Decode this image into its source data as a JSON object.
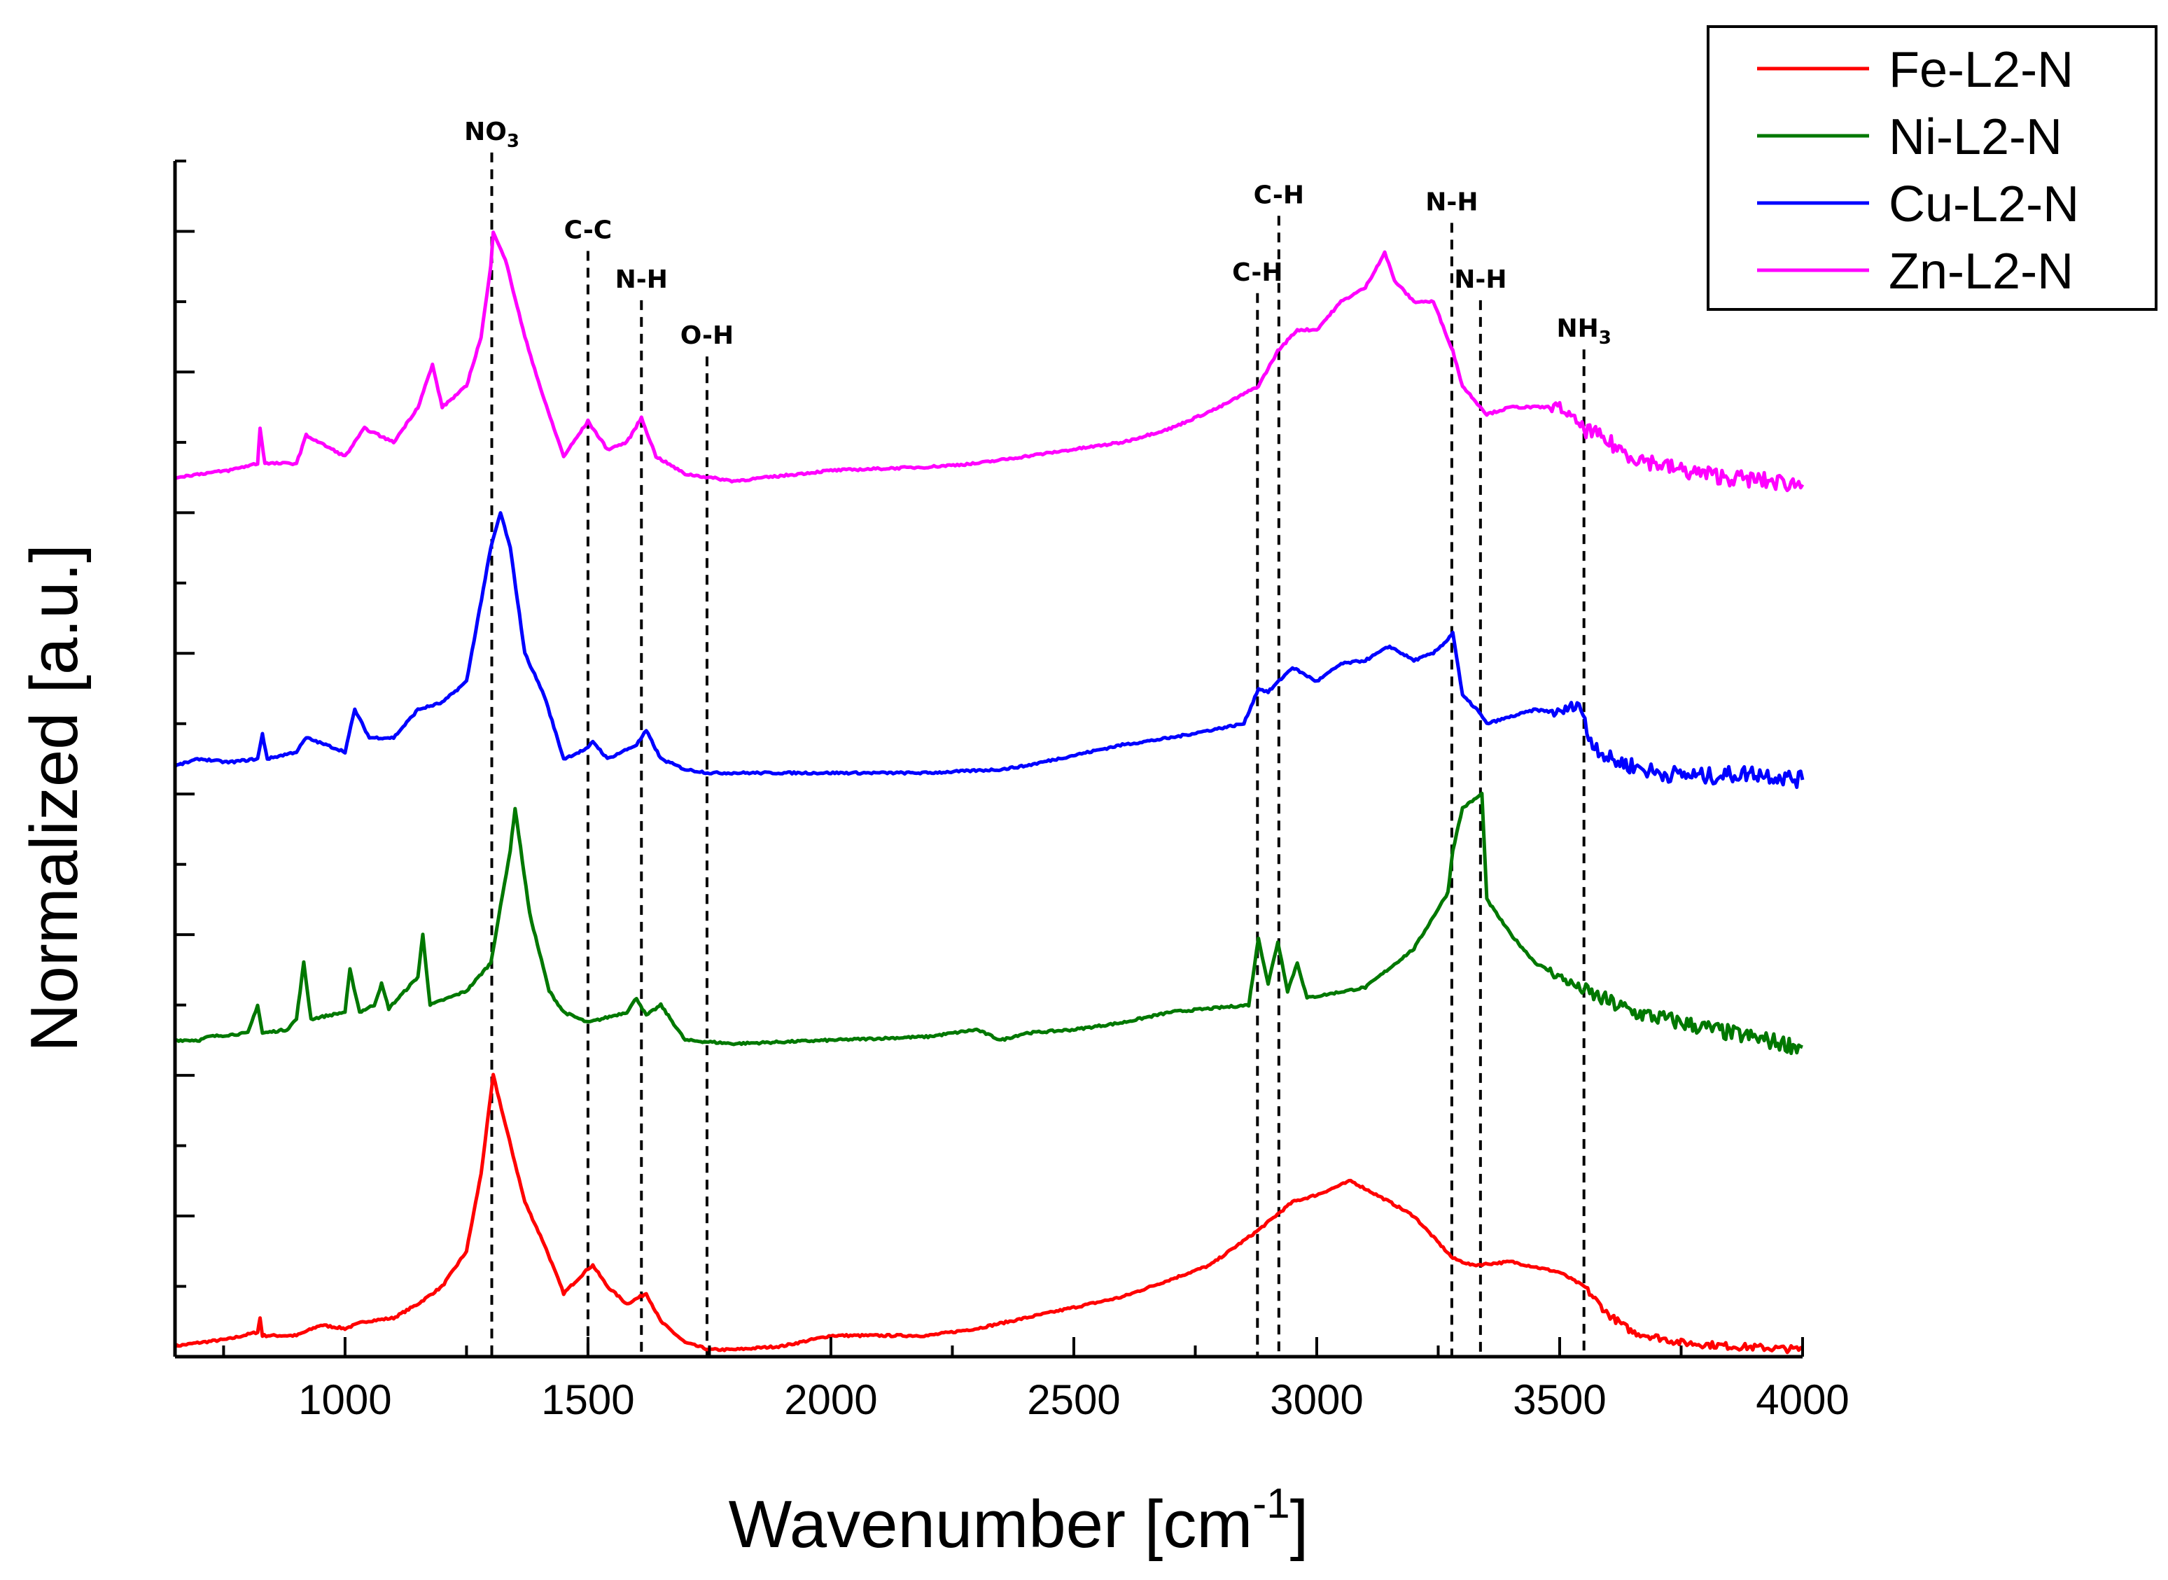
{
  "chart_data": {
    "type": "line",
    "title": "",
    "xlabel": "Wavenumber [cm",
    "xlabel_sup": "-1",
    "xlabel_end": "]",
    "ylabel": "Normalized [a.u.]",
    "xlim": [
      650,
      4000
    ],
    "ylim": [
      0,
      17
    ],
    "x_ticks": [
      "1000",
      "1500",
      "2000",
      "2500",
      "3000",
      "3500",
      "4000"
    ],
    "x_tick_values": [
      1000,
      1500,
      2000,
      2500,
      3000,
      3500,
      4000
    ],
    "y_tick_labels_shown": false,
    "legend_position": "top-right",
    "series": [
      {
        "name": "Fe-L2-N",
        "color": "#ff0000",
        "points": [
          [
            650,
            0.15
          ],
          [
            700,
            0.2
          ],
          [
            760,
            0.25
          ],
          [
            820,
            0.35
          ],
          [
            825,
            0.55
          ],
          [
            830,
            0.3
          ],
          [
            900,
            0.3
          ],
          [
            950,
            0.45
          ],
          [
            1000,
            0.4
          ],
          [
            1040,
            0.5
          ],
          [
            1100,
            0.55
          ],
          [
            1150,
            0.75
          ],
          [
            1200,
            1.0
          ],
          [
            1250,
            1.5
          ],
          [
            1280,
            2.6
          ],
          [
            1305,
            4.0
          ],
          [
            1330,
            3.3
          ],
          [
            1370,
            2.2
          ],
          [
            1410,
            1.6
          ],
          [
            1450,
            0.9
          ],
          [
            1500,
            1.25
          ],
          [
            1510,
            1.3
          ],
          [
            1540,
            1.0
          ],
          [
            1580,
            0.75
          ],
          [
            1620,
            0.9
          ],
          [
            1650,
            0.5
          ],
          [
            1700,
            0.2
          ],
          [
            1750,
            0.1
          ],
          [
            1800,
            0.1
          ],
          [
            1900,
            0.15
          ],
          [
            2000,
            0.3
          ],
          [
            2100,
            0.3
          ],
          [
            2200,
            0.3
          ],
          [
            2300,
            0.4
          ],
          [
            2400,
            0.55
          ],
          [
            2500,
            0.7
          ],
          [
            2600,
            0.85
          ],
          [
            2700,
            1.1
          ],
          [
            2780,
            1.3
          ],
          [
            2880,
            1.8
          ],
          [
            2950,
            2.2
          ],
          [
            3000,
            2.3
          ],
          [
            3070,
            2.5
          ],
          [
            3150,
            2.2
          ],
          [
            3200,
            2.0
          ],
          [
            3280,
            1.4
          ],
          [
            3320,
            1.3
          ],
          [
            3400,
            1.35
          ],
          [
            3500,
            1.2
          ],
          [
            3550,
            1.0
          ],
          [
            3600,
            0.6
          ],
          [
            3650,
            0.35
          ],
          [
            3750,
            0.2
          ],
          [
            3850,
            0.15
          ],
          [
            4000,
            0.1
          ]
        ]
      },
      {
        "name": "Ni-L2-N",
        "color": "#007800",
        "points": [
          [
            650,
            4.5
          ],
          [
            700,
            4.5
          ],
          [
            720,
            4.55
          ],
          [
            800,
            4.6
          ],
          [
            820,
            5.0
          ],
          [
            830,
            4.6
          ],
          [
            880,
            4.65
          ],
          [
            900,
            4.8
          ],
          [
            915,
            5.6
          ],
          [
            930,
            4.8
          ],
          [
            1000,
            4.9
          ],
          [
            1010,
            5.5
          ],
          [
            1030,
            4.9
          ],
          [
            1060,
            5.0
          ],
          [
            1075,
            5.3
          ],
          [
            1090,
            4.95
          ],
          [
            1150,
            5.4
          ],
          [
            1160,
            6.0
          ],
          [
            1175,
            5.0
          ],
          [
            1250,
            5.2
          ],
          [
            1300,
            5.6
          ],
          [
            1340,
            7.2
          ],
          [
            1350,
            7.8
          ],
          [
            1380,
            6.3
          ],
          [
            1420,
            5.2
          ],
          [
            1450,
            4.9
          ],
          [
            1500,
            4.75
          ],
          [
            1580,
            4.9
          ],
          [
            1600,
            5.1
          ],
          [
            1620,
            4.85
          ],
          [
            1650,
            5.0
          ],
          [
            1700,
            4.5
          ],
          [
            1800,
            4.45
          ],
          [
            2000,
            4.5
          ],
          [
            2200,
            4.55
          ],
          [
            2300,
            4.65
          ],
          [
            2350,
            4.5
          ],
          [
            2400,
            4.6
          ],
          [
            2500,
            4.65
          ],
          [
            2600,
            4.75
          ],
          [
            2700,
            4.9
          ],
          [
            2860,
            5.0
          ],
          [
            2880,
            5.95
          ],
          [
            2900,
            5.3
          ],
          [
            2920,
            5.9
          ],
          [
            2940,
            5.2
          ],
          [
            2960,
            5.6
          ],
          [
            2980,
            5.1
          ],
          [
            3100,
            5.25
          ],
          [
            3200,
            5.8
          ],
          [
            3270,
            6.6
          ],
          [
            3280,
            7.2
          ],
          [
            3300,
            7.8
          ],
          [
            3340,
            8.0
          ],
          [
            3350,
            6.5
          ],
          [
            3400,
            6.0
          ],
          [
            3450,
            5.6
          ],
          [
            3500,
            5.4
          ],
          [
            3550,
            5.2
          ],
          [
            3650,
            4.9
          ],
          [
            3750,
            4.75
          ],
          [
            3850,
            4.6
          ],
          [
            4000,
            4.4
          ]
        ]
      },
      {
        "name": "Cu-L2-N",
        "color": "#0000ff",
        "points": [
          [
            650,
            8.4
          ],
          [
            700,
            8.5
          ],
          [
            760,
            8.45
          ],
          [
            820,
            8.5
          ],
          [
            830,
            8.85
          ],
          [
            840,
            8.5
          ],
          [
            900,
            8.6
          ],
          [
            920,
            8.8
          ],
          [
            1000,
            8.6
          ],
          [
            1020,
            9.2
          ],
          [
            1050,
            8.8
          ],
          [
            1100,
            8.8
          ],
          [
            1150,
            9.2
          ],
          [
            1200,
            9.3
          ],
          [
            1250,
            9.6
          ],
          [
            1300,
            11.5
          ],
          [
            1320,
            12.0
          ],
          [
            1340,
            11.5
          ],
          [
            1370,
            10.0
          ],
          [
            1410,
            9.4
          ],
          [
            1450,
            8.5
          ],
          [
            1500,
            8.65
          ],
          [
            1510,
            8.75
          ],
          [
            1540,
            8.5
          ],
          [
            1600,
            8.7
          ],
          [
            1620,
            8.9
          ],
          [
            1650,
            8.5
          ],
          [
            1700,
            8.35
          ],
          [
            1750,
            8.3
          ],
          [
            1800,
            8.3
          ],
          [
            2000,
            8.3
          ],
          [
            2200,
            8.3
          ],
          [
            2350,
            8.35
          ],
          [
            2400,
            8.4
          ],
          [
            2500,
            8.55
          ],
          [
            2600,
            8.7
          ],
          [
            2700,
            8.8
          ],
          [
            2850,
            9.0
          ],
          [
            2880,
            9.5
          ],
          [
            2900,
            9.45
          ],
          [
            2950,
            9.8
          ],
          [
            3000,
            9.6
          ],
          [
            3050,
            9.85
          ],
          [
            3100,
            9.9
          ],
          [
            3150,
            10.1
          ],
          [
            3200,
            9.9
          ],
          [
            3240,
            10.0
          ],
          [
            3270,
            10.2
          ],
          [
            3280,
            10.3
          ],
          [
            3300,
            9.4
          ],
          [
            3330,
            9.2
          ],
          [
            3350,
            9.0
          ],
          [
            3400,
            9.1
          ],
          [
            3450,
            9.2
          ],
          [
            3500,
            9.15
          ],
          [
            3540,
            9.3
          ],
          [
            3560,
            8.8
          ],
          [
            3600,
            8.5
          ],
          [
            3700,
            8.3
          ],
          [
            3800,
            8.25
          ],
          [
            3900,
            8.3
          ],
          [
            4000,
            8.2
          ]
        ]
      },
      {
        "name": "Zn-L2-N",
        "color": "#ff00ff",
        "points": [
          [
            650,
            12.5
          ],
          [
            700,
            12.55
          ],
          [
            760,
            12.6
          ],
          [
            820,
            12.7
          ],
          [
            825,
            13.2
          ],
          [
            835,
            12.7
          ],
          [
            900,
            12.7
          ],
          [
            920,
            13.1
          ],
          [
            1000,
            12.8
          ],
          [
            1040,
            13.2
          ],
          [
            1100,
            13.0
          ],
          [
            1150,
            13.5
          ],
          [
            1180,
            14.1
          ],
          [
            1200,
            13.5
          ],
          [
            1250,
            13.8
          ],
          [
            1280,
            14.5
          ],
          [
            1300,
            15.5
          ],
          [
            1305,
            16.0
          ],
          [
            1330,
            15.6
          ],
          [
            1370,
            14.5
          ],
          [
            1410,
            13.6
          ],
          [
            1450,
            12.8
          ],
          [
            1500,
            13.3
          ],
          [
            1540,
            12.9
          ],
          [
            1580,
            13.0
          ],
          [
            1610,
            13.35
          ],
          [
            1640,
            12.8
          ],
          [
            1700,
            12.55
          ],
          [
            1750,
            12.5
          ],
          [
            1800,
            12.45
          ],
          [
            2000,
            12.6
          ],
          [
            2200,
            12.65
          ],
          [
            2300,
            12.7
          ],
          [
            2400,
            12.8
          ],
          [
            2500,
            12.9
          ],
          [
            2600,
            13.0
          ],
          [
            2700,
            13.2
          ],
          [
            2800,
            13.5
          ],
          [
            2880,
            13.8
          ],
          [
            2920,
            14.3
          ],
          [
            2960,
            14.6
          ],
          [
            3000,
            14.6
          ],
          [
            3050,
            15.0
          ],
          [
            3100,
            15.2
          ],
          [
            3140,
            15.7
          ],
          [
            3160,
            15.3
          ],
          [
            3200,
            15.0
          ],
          [
            3240,
            15.0
          ],
          [
            3280,
            14.3
          ],
          [
            3300,
            13.8
          ],
          [
            3350,
            13.4
          ],
          [
            3400,
            13.5
          ],
          [
            3500,
            13.5
          ],
          [
            3550,
            13.2
          ],
          [
            3650,
            12.8
          ],
          [
            3750,
            12.6
          ],
          [
            3850,
            12.5
          ],
          [
            4000,
            12.4
          ]
        ]
      }
    ],
    "annotations": [
      {
        "label": "NO",
        "sub": "3",
        "x": 1302,
        "label_y": 17.3
      },
      {
        "label": "C-C",
        "sub": "",
        "x": 1500,
        "label_y": 15.9
      },
      {
        "label": "N-H",
        "sub": "",
        "x": 1610,
        "label_y": 15.2
      },
      {
        "label": "O-H",
        "sub": "",
        "x": 1745,
        "label_y": 14.4
      },
      {
        "label": "C-H",
        "sub": "",
        "x": 2878,
        "label_y": 15.3
      },
      {
        "label": "C-H",
        "sub": "",
        "x": 2922,
        "label_y": 16.4
      },
      {
        "label": "N-H",
        "sub": "",
        "x": 3278,
        "label_y": 16.3
      },
      {
        "label": "N-H",
        "sub": "",
        "x": 3337,
        "label_y": 15.2
      },
      {
        "label": "NH",
        "sub": "3",
        "x": 3550,
        "label_y": 14.5
      }
    ]
  }
}
